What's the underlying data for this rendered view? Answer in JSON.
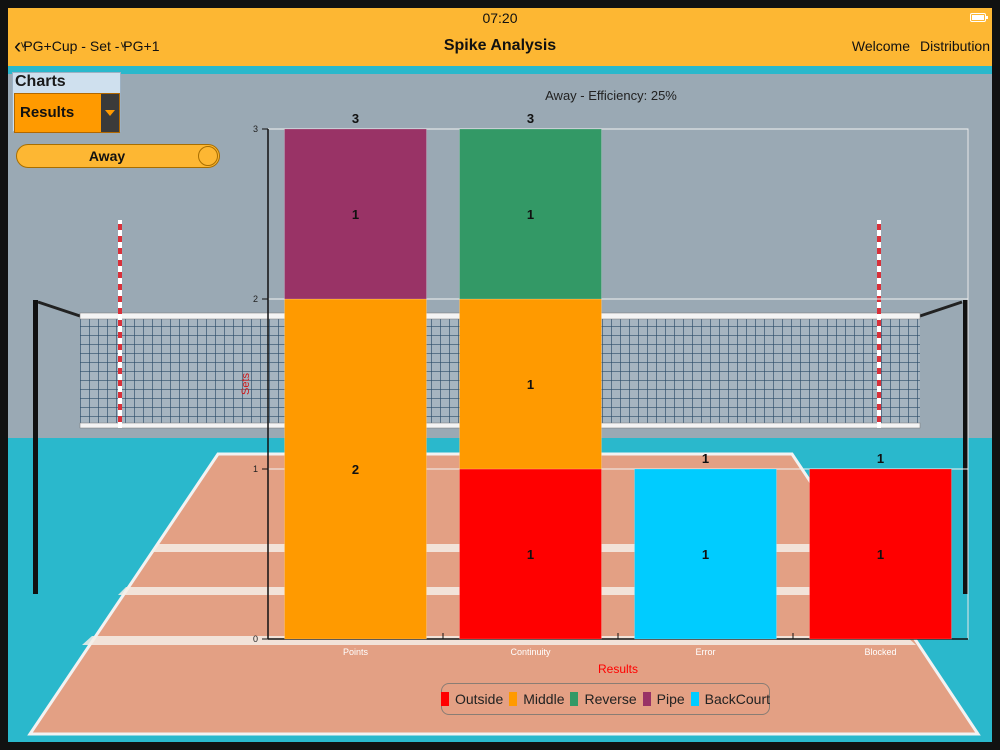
{
  "status_bar": {
    "time": "07:20"
  },
  "nav": {
    "back_label": "ͮPG+Cup - Set - ͮPG+1",
    "title": "Spike Analysis",
    "links": [
      "Welcome",
      "Distribution"
    ]
  },
  "controls": {
    "charts_label": "Charts",
    "chart_select_value": "Results",
    "team_toggle_label": "Away"
  },
  "colors": {
    "accent": "#fdb733",
    "Outside": "#ff0000",
    "Middle": "#ff9a00",
    "Reverse": "#339966",
    "Pipe": "#993366",
    "BackCourt": "#00ccff"
  },
  "chart_data": {
    "type": "bar",
    "stacked": true,
    "title": "Away - Efficiency: 25%",
    "xlabel": "Results",
    "ylabel": "Sets",
    "categories": [
      "Points",
      "Continuity",
      "Error",
      "Blocked"
    ],
    "ylim": [
      0,
      3
    ],
    "yticks": [
      "0",
      "1",
      "2",
      "3"
    ],
    "totals": [
      "3",
      "3",
      "1",
      "1"
    ],
    "series": [
      {
        "name": "Outside",
        "values": [
          0,
          1,
          0,
          1
        ]
      },
      {
        "name": "Middle",
        "values": [
          2,
          1,
          0,
          0
        ]
      },
      {
        "name": "Reverse",
        "values": [
          0,
          1,
          0,
          0
        ]
      },
      {
        "name": "Pipe",
        "values": [
          1,
          0,
          0,
          0
        ]
      },
      {
        "name": "BackCourt",
        "values": [
          0,
          0,
          1,
          0
        ]
      }
    ],
    "legend": {
      "position": "bottom"
    },
    "grid": false
  }
}
